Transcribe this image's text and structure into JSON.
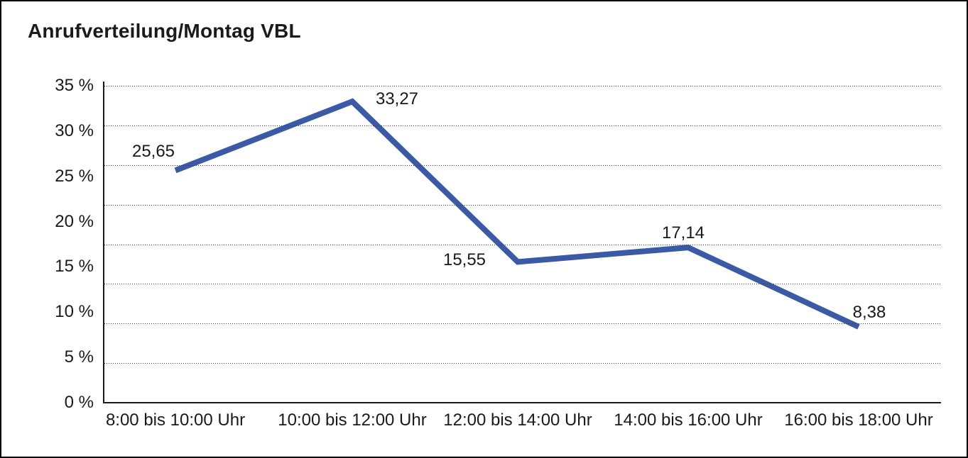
{
  "title": "Anrufverteilung/Montag VBL",
  "chart_data": {
    "type": "line",
    "title": "Anrufverteilung/Montag VBL",
    "categories": [
      "8:00 bis 10:00 Uhr",
      "10:00 bis 12:00 Uhr",
      "12:00 bis 14:00 Uhr",
      "14:00 bis 16:00 Uhr",
      "16:00 bis 18:00 Uhr"
    ],
    "values": [
      25.65,
      33.27,
      15.55,
      17.14,
      8.38
    ],
    "value_labels": [
      "25,65",
      "33,27",
      "15,55",
      "17,14",
      "8,38"
    ],
    "y_tick_labels": [
      "35 %",
      "30 %",
      "25 %",
      "20 %",
      "15 %",
      "10 %",
      "5 %",
      "0 %"
    ],
    "ylim": [
      0,
      35
    ],
    "xlabel": "",
    "ylabel": "",
    "grid": "horizontal-dotted",
    "legend": "none",
    "series_name": "Anrufverteilung Montag VBL",
    "line_color": "#3A5AA5",
    "axis_color": "#1a1a1a",
    "text_color": "#1a1a1a",
    "background_color": "#ffffff"
  }
}
